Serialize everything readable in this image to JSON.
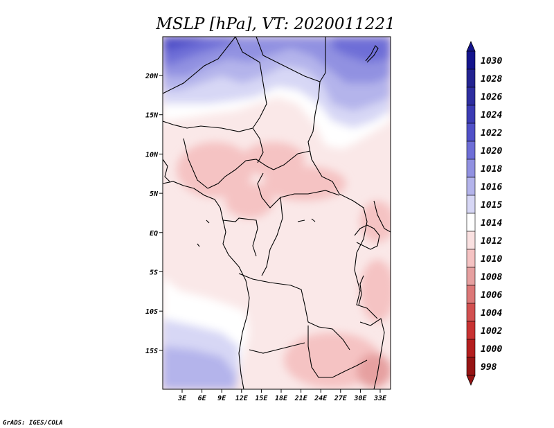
{
  "title": "MSLP [hPa], VT: 2020011221",
  "credit": "GrADS: IGES/COLA",
  "map": {
    "lat_labels": [
      "20N",
      "15N",
      "10N",
      "5N",
      "EQ",
      "5S",
      "10S",
      "15S"
    ],
    "lon_labels": [
      "3E",
      "6E",
      "9E",
      "12E",
      "15E",
      "18E",
      "21E",
      "24E",
      "27E",
      "30E",
      "33E"
    ]
  },
  "colorbar": {
    "labels": [
      "1030",
      "1028",
      "1026",
      "1024",
      "1022",
      "1020",
      "1018",
      "1016",
      "1015",
      "1014",
      "1012",
      "1010",
      "1008",
      "1006",
      "1004",
      "1002",
      "1000",
      "998"
    ],
    "colors": [
      "#14148c",
      "#232391",
      "#2e2ea0",
      "#3c3cb4",
      "#5050c8",
      "#6e6ed7",
      "#9191e1",
      "#b4b4eb",
      "#d7d7f5",
      "#ffffff",
      "#fae1e1",
      "#f5c3c3",
      "#e6a0a0",
      "#dc7878",
      "#d25050",
      "#c83232",
      "#b41e1e",
      "#961414"
    ]
  }
}
